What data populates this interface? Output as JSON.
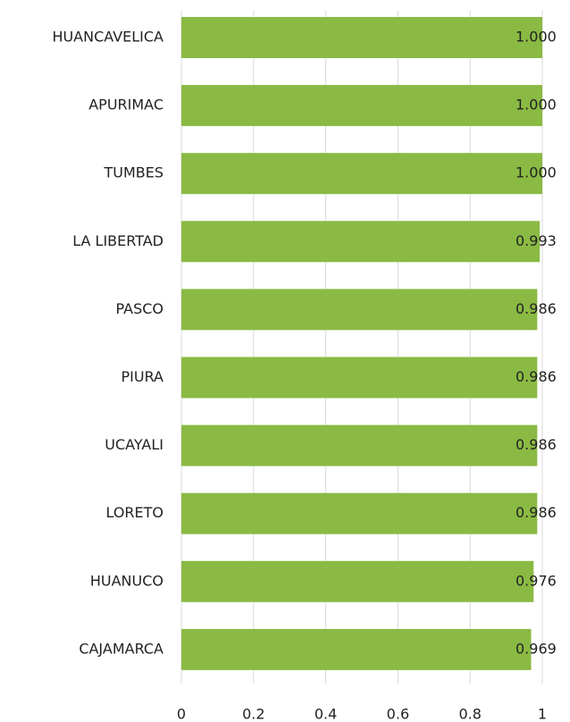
{
  "chart_data": {
    "type": "barh",
    "categories": [
      "HUANCAVELICA",
      "APURIMAC",
      "TUMBES",
      "LA LIBERTAD",
      "PASCO",
      "PIURA",
      "UCAYALI",
      "LORETO",
      "HUANUCO",
      "CAJAMARCA"
    ],
    "values": [
      1.0,
      1.0,
      1.0,
      0.993,
      0.986,
      0.986,
      0.986,
      0.986,
      0.976,
      0.969
    ],
    "value_labels": [
      "1.000",
      "1.000",
      "1.000",
      "0.993",
      "0.986",
      "0.986",
      "0.986",
      "0.986",
      "0.976",
      "0.969"
    ],
    "color": "#8aba43",
    "xlim": [
      0,
      1
    ],
    "xticks": [
      0,
      0.2,
      0.4,
      0.6,
      0.8,
      1
    ],
    "grid": true
  }
}
